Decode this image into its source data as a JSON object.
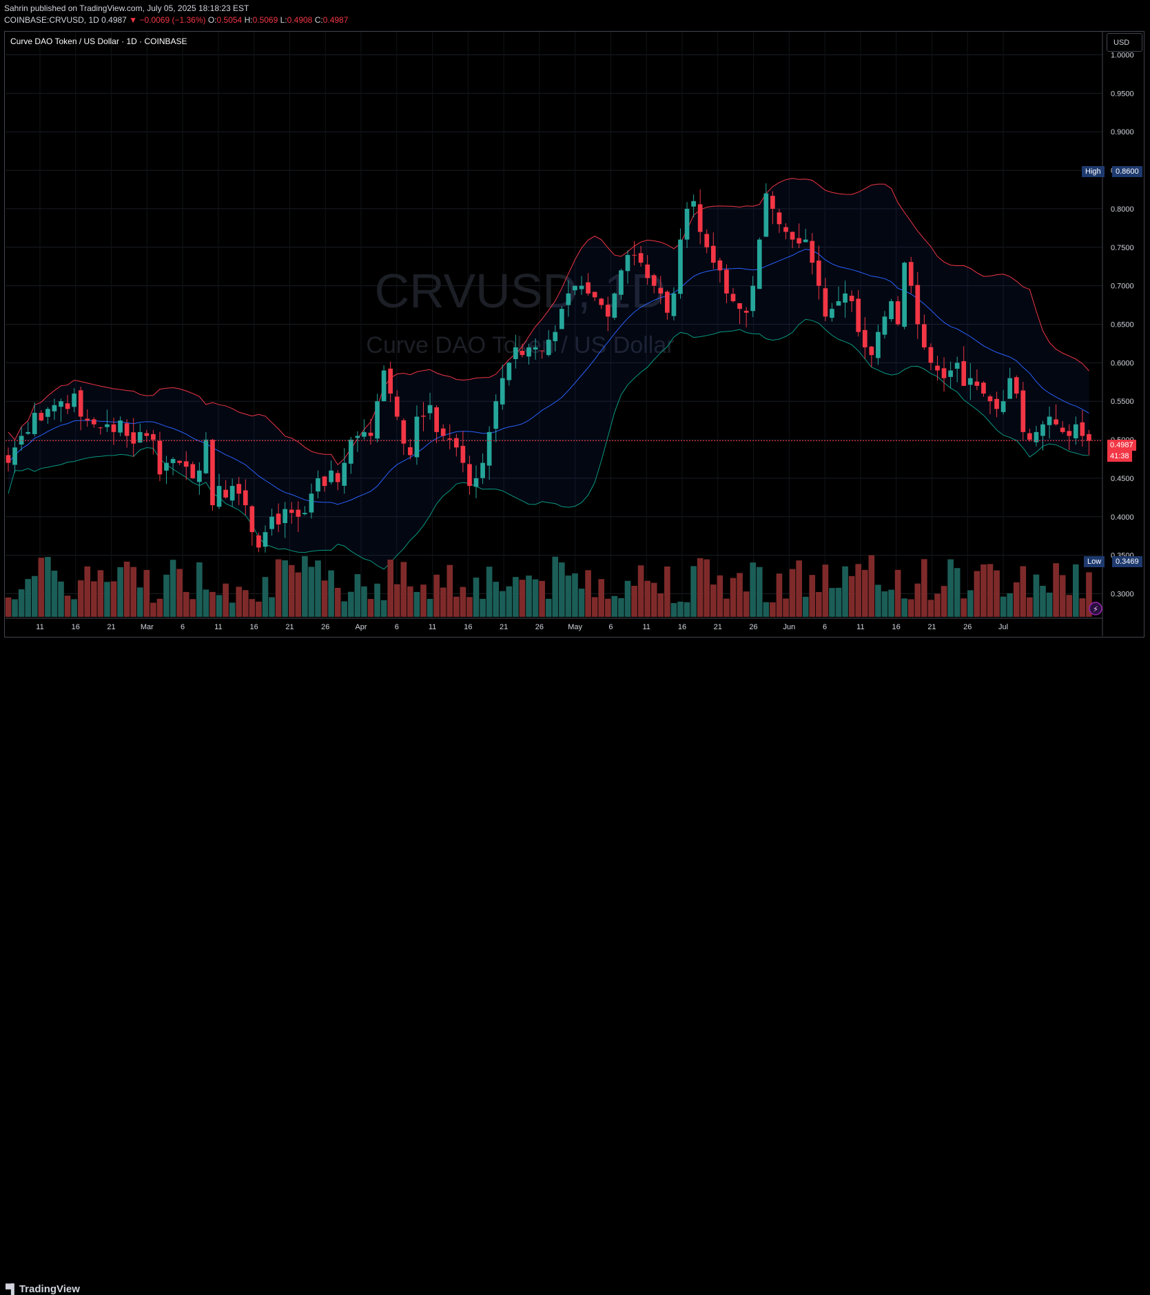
{
  "header": {
    "publisher_line": "Sahrin published on TradingView.com, July 05, 2025 18:18:23 EST",
    "symbol": "COINBASE:CRVUSD, 1D",
    "last": "0.4987",
    "change": "−0.0069 (−1.36%)",
    "o_label": "O:",
    "o_value": "0.5054",
    "h_label": "H:",
    "h_value": "0.5069",
    "l_label": "L:",
    "l_value": "0.4908",
    "c_label": "C:",
    "c_value": "0.4987"
  },
  "legend": {
    "title": "Curve DAO Token / US Dollar · 1D · COINBASE"
  },
  "watermark": {
    "symbol": "CRVUSD, 1D",
    "name": "Curve DAO Token / US Dollar"
  },
  "currency_button": "USD",
  "high_marker": {
    "label": "High",
    "value": "0.8600"
  },
  "low_marker": {
    "label": "Low",
    "value": "0.3469"
  },
  "last_price_tag": {
    "value": "0.4987",
    "countdown": "41:38"
  },
  "footer": {
    "brand": "TradingView"
  },
  "colors": {
    "up": "#26a69a",
    "down": "#f23645",
    "basis": "#2962ff",
    "upper_band": "#f23645",
    "lower_band": "#089981",
    "vol_up": "#1b5e57",
    "vol_down": "#7f2a2a",
    "tag_blue": "#1e3a6e"
  },
  "chart_data": {
    "type": "candlestick",
    "title": "Curve DAO Token / US Dollar · 1D · COINBASE",
    "ylim": [
      0.27,
      1.03
    ],
    "y_ticks": [
      "1.0000",
      "0.9500",
      "0.9000",
      "0.8500",
      "0.8000",
      "0.7500",
      "0.7000",
      "0.6500",
      "0.6000",
      "0.5500",
      "0.5000",
      "0.4500",
      "0.4000",
      "0.3500",
      "0.3000"
    ],
    "x_tick_labels": [
      "11",
      "16",
      "21",
      "Mar",
      "6",
      "11",
      "16",
      "21",
      "26",
      "Apr",
      "6",
      "11",
      "16",
      "21",
      "26",
      "May",
      "6",
      "11",
      "16",
      "21",
      "26",
      "Jun",
      "6",
      "11",
      "16",
      "21",
      "26",
      "Jul"
    ],
    "candles_daily_close": [
      0.47,
      0.49,
      0.505,
      0.51,
      0.535,
      0.525,
      0.54,
      0.545,
      0.55,
      0.54,
      0.56,
      0.53,
      0.525,
      0.52,
      0.515,
      0.52,
      0.51,
      0.525,
      0.505,
      0.495,
      0.51,
      0.505,
      0.5,
      0.455,
      0.47,
      0.475,
      0.47,
      0.465,
      0.45,
      0.46,
      0.5,
      0.415,
      0.44,
      0.425,
      0.44,
      0.43,
      0.415,
      0.38,
      0.36,
      0.38,
      0.4,
      0.39,
      0.41,
      0.405,
      0.4,
      0.405,
      0.43,
      0.45,
      0.44,
      0.46,
      0.445,
      0.47,
      0.5,
      0.505,
      0.51,
      0.505,
      0.55,
      0.59,
      0.56,
      0.53,
      0.495,
      0.48,
      0.53,
      0.53,
      0.545,
      0.51,
      0.505,
      0.5,
      0.49,
      0.47,
      0.44,
      0.45,
      0.47,
      0.51,
      0.55,
      0.58,
      0.6,
      0.62,
      0.61,
      0.62,
      0.62,
      0.615,
      0.63,
      0.64,
      0.67,
      0.69,
      0.7,
      0.7,
      0.69,
      0.685,
      0.675,
      0.66,
      0.69,
      0.72,
      0.74,
      0.74,
      0.73,
      0.71,
      0.7,
      0.69,
      0.665,
      0.69,
      0.76,
      0.8,
      0.81,
      0.77,
      0.75,
      0.73,
      0.72,
      0.69,
      0.68,
      0.67,
      0.665,
      0.7,
      0.76,
      0.82,
      0.8,
      0.78,
      0.77,
      0.76,
      0.755,
      0.76,
      0.73,
      0.7,
      0.66,
      0.67,
      0.68,
      0.69,
      0.68,
      0.64,
      0.62,
      0.61,
      0.64,
      0.66,
      0.68,
      0.65,
      0.73,
      0.7,
      0.65,
      0.62,
      0.6,
      0.59,
      0.58,
      0.59,
      0.6,
      0.57,
      0.58,
      0.57,
      0.56,
      0.55,
      0.54,
      0.55,
      0.58,
      0.56,
      0.51,
      0.5,
      0.51,
      0.52,
      0.53,
      0.52,
      0.51,
      0.505,
      0.52,
      0.505,
      0.4987
    ],
    "visible_range": {
      "start": "Feb 5",
      "end": "Jul 5"
    },
    "last_price": 0.4987,
    "high": 0.86,
    "low": 0.3469,
    "indicators": [
      "Bollinger Bands (basis, upper, lower)",
      "Volume"
    ]
  }
}
